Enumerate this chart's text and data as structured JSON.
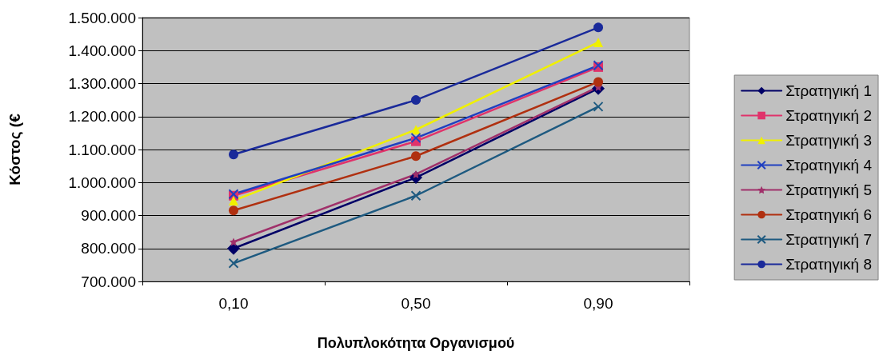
{
  "chart_data": {
    "type": "line",
    "xlabel": "Πολυπλοκότητα Οργανισμού",
    "ylabel": "Κόστος (€",
    "categories": [
      "0,10",
      "0,50",
      "0,90"
    ],
    "ylim": [
      700000,
      1500000
    ],
    "yticks": [
      {
        "value": 700000,
        "label": "700.000"
      },
      {
        "value": 800000,
        "label": "800.000"
      },
      {
        "value": 900000,
        "label": "900.000"
      },
      {
        "value": 1000000,
        "label": "1.000.000"
      },
      {
        "value": 1100000,
        "label": "1.100.000"
      },
      {
        "value": 1200000,
        "label": "1.200.000"
      },
      {
        "value": 1300000,
        "label": "1.300.000"
      },
      {
        "value": 1400000,
        "label": "1.400.000"
      },
      {
        "value": 1500000,
        "label": "1.500.000"
      }
    ],
    "grid": "y",
    "legend": "right",
    "line_style": "solid",
    "series": [
      {
        "name": "Στρατηγική 1",
        "color": "#000066",
        "marker": "diamond",
        "values": [
          800000,
          1015000,
          1285000
        ]
      },
      {
        "name": "Στρατηγική 2",
        "color": "#e0336b",
        "marker": "square",
        "values": [
          960000,
          1125000,
          1350000
        ]
      },
      {
        "name": "Στρατηγική 3",
        "color": "#f0f000",
        "marker": "triangle",
        "values": [
          945000,
          1160000,
          1425000
        ]
      },
      {
        "name": "Στρατηγική 4",
        "color": "#2040c0",
        "marker": "cross",
        "values": [
          965000,
          1135000,
          1355000
        ]
      },
      {
        "name": "Στρατηγική 5",
        "color": "#a0306a",
        "marker": "star",
        "values": [
          820000,
          1025000,
          1290000
        ]
      },
      {
        "name": "Στρατηγική 6",
        "color": "#b03010",
        "marker": "circle",
        "values": [
          915000,
          1080000,
          1305000
        ]
      },
      {
        "name": "Στρατηγική 7",
        "color": "#1e5a80",
        "marker": "cross",
        "values": [
          755000,
          960000,
          1230000
        ]
      },
      {
        "name": "Στρατηγική 8",
        "color": "#1a2a9a",
        "marker": "circle",
        "values": [
          1085000,
          1250000,
          1470000
        ]
      }
    ]
  }
}
